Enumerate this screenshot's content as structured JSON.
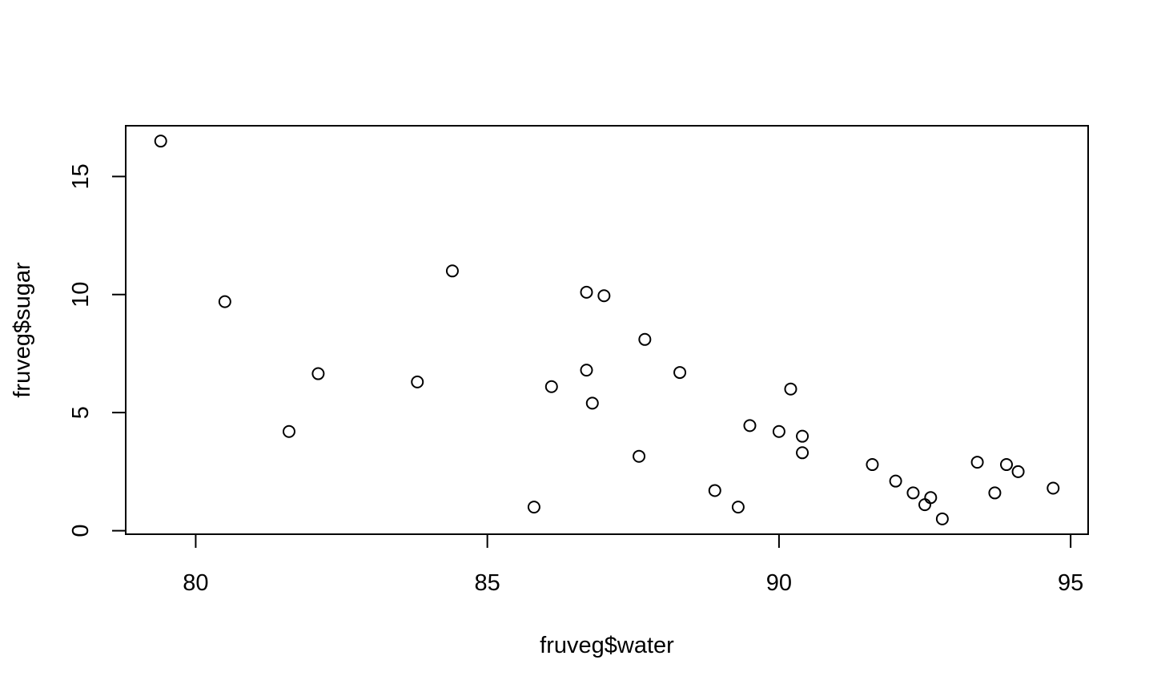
{
  "chart_data": {
    "type": "scatter",
    "xlabel": "fruveg$water",
    "ylabel": "fruveg$sugar",
    "xlim": [
      78.8,
      95.3
    ],
    "ylim": [
      -0.15,
      17.15
    ],
    "xticks": [
      80,
      85,
      90,
      95
    ],
    "yticks": [
      0,
      5,
      10,
      15
    ],
    "grid": false,
    "points": [
      {
        "x": 79.4,
        "y": 16.5
      },
      {
        "x": 80.5,
        "y": 9.7
      },
      {
        "x": 81.6,
        "y": 4.2
      },
      {
        "x": 82.1,
        "y": 6.65
      },
      {
        "x": 83.8,
        "y": 6.3
      },
      {
        "x": 84.4,
        "y": 11.0
      },
      {
        "x": 85.8,
        "y": 1.0
      },
      {
        "x": 86.1,
        "y": 6.1
      },
      {
        "x": 86.7,
        "y": 10.1
      },
      {
        "x": 86.7,
        "y": 6.8
      },
      {
        "x": 86.8,
        "y": 5.4
      },
      {
        "x": 87.0,
        "y": 9.95
      },
      {
        "x": 87.6,
        "y": 3.15
      },
      {
        "x": 87.7,
        "y": 8.1
      },
      {
        "x": 88.3,
        "y": 6.7
      },
      {
        "x": 88.9,
        "y": 1.7
      },
      {
        "x": 89.3,
        "y": 1.0
      },
      {
        "x": 89.5,
        "y": 4.45
      },
      {
        "x": 90.0,
        "y": 4.2
      },
      {
        "x": 90.2,
        "y": 6.0
      },
      {
        "x": 90.4,
        "y": 4.0
      },
      {
        "x": 90.4,
        "y": 3.3
      },
      {
        "x": 91.6,
        "y": 2.8
      },
      {
        "x": 92.0,
        "y": 2.1
      },
      {
        "x": 92.3,
        "y": 1.6
      },
      {
        "x": 92.5,
        "y": 1.1
      },
      {
        "x": 92.6,
        "y": 1.4
      },
      {
        "x": 92.8,
        "y": 0.5
      },
      {
        "x": 93.4,
        "y": 2.9
      },
      {
        "x": 93.7,
        "y": 1.6
      },
      {
        "x": 93.9,
        "y": 2.8
      },
      {
        "x": 94.1,
        "y": 2.5
      },
      {
        "x": 94.7,
        "y": 1.8
      }
    ]
  }
}
